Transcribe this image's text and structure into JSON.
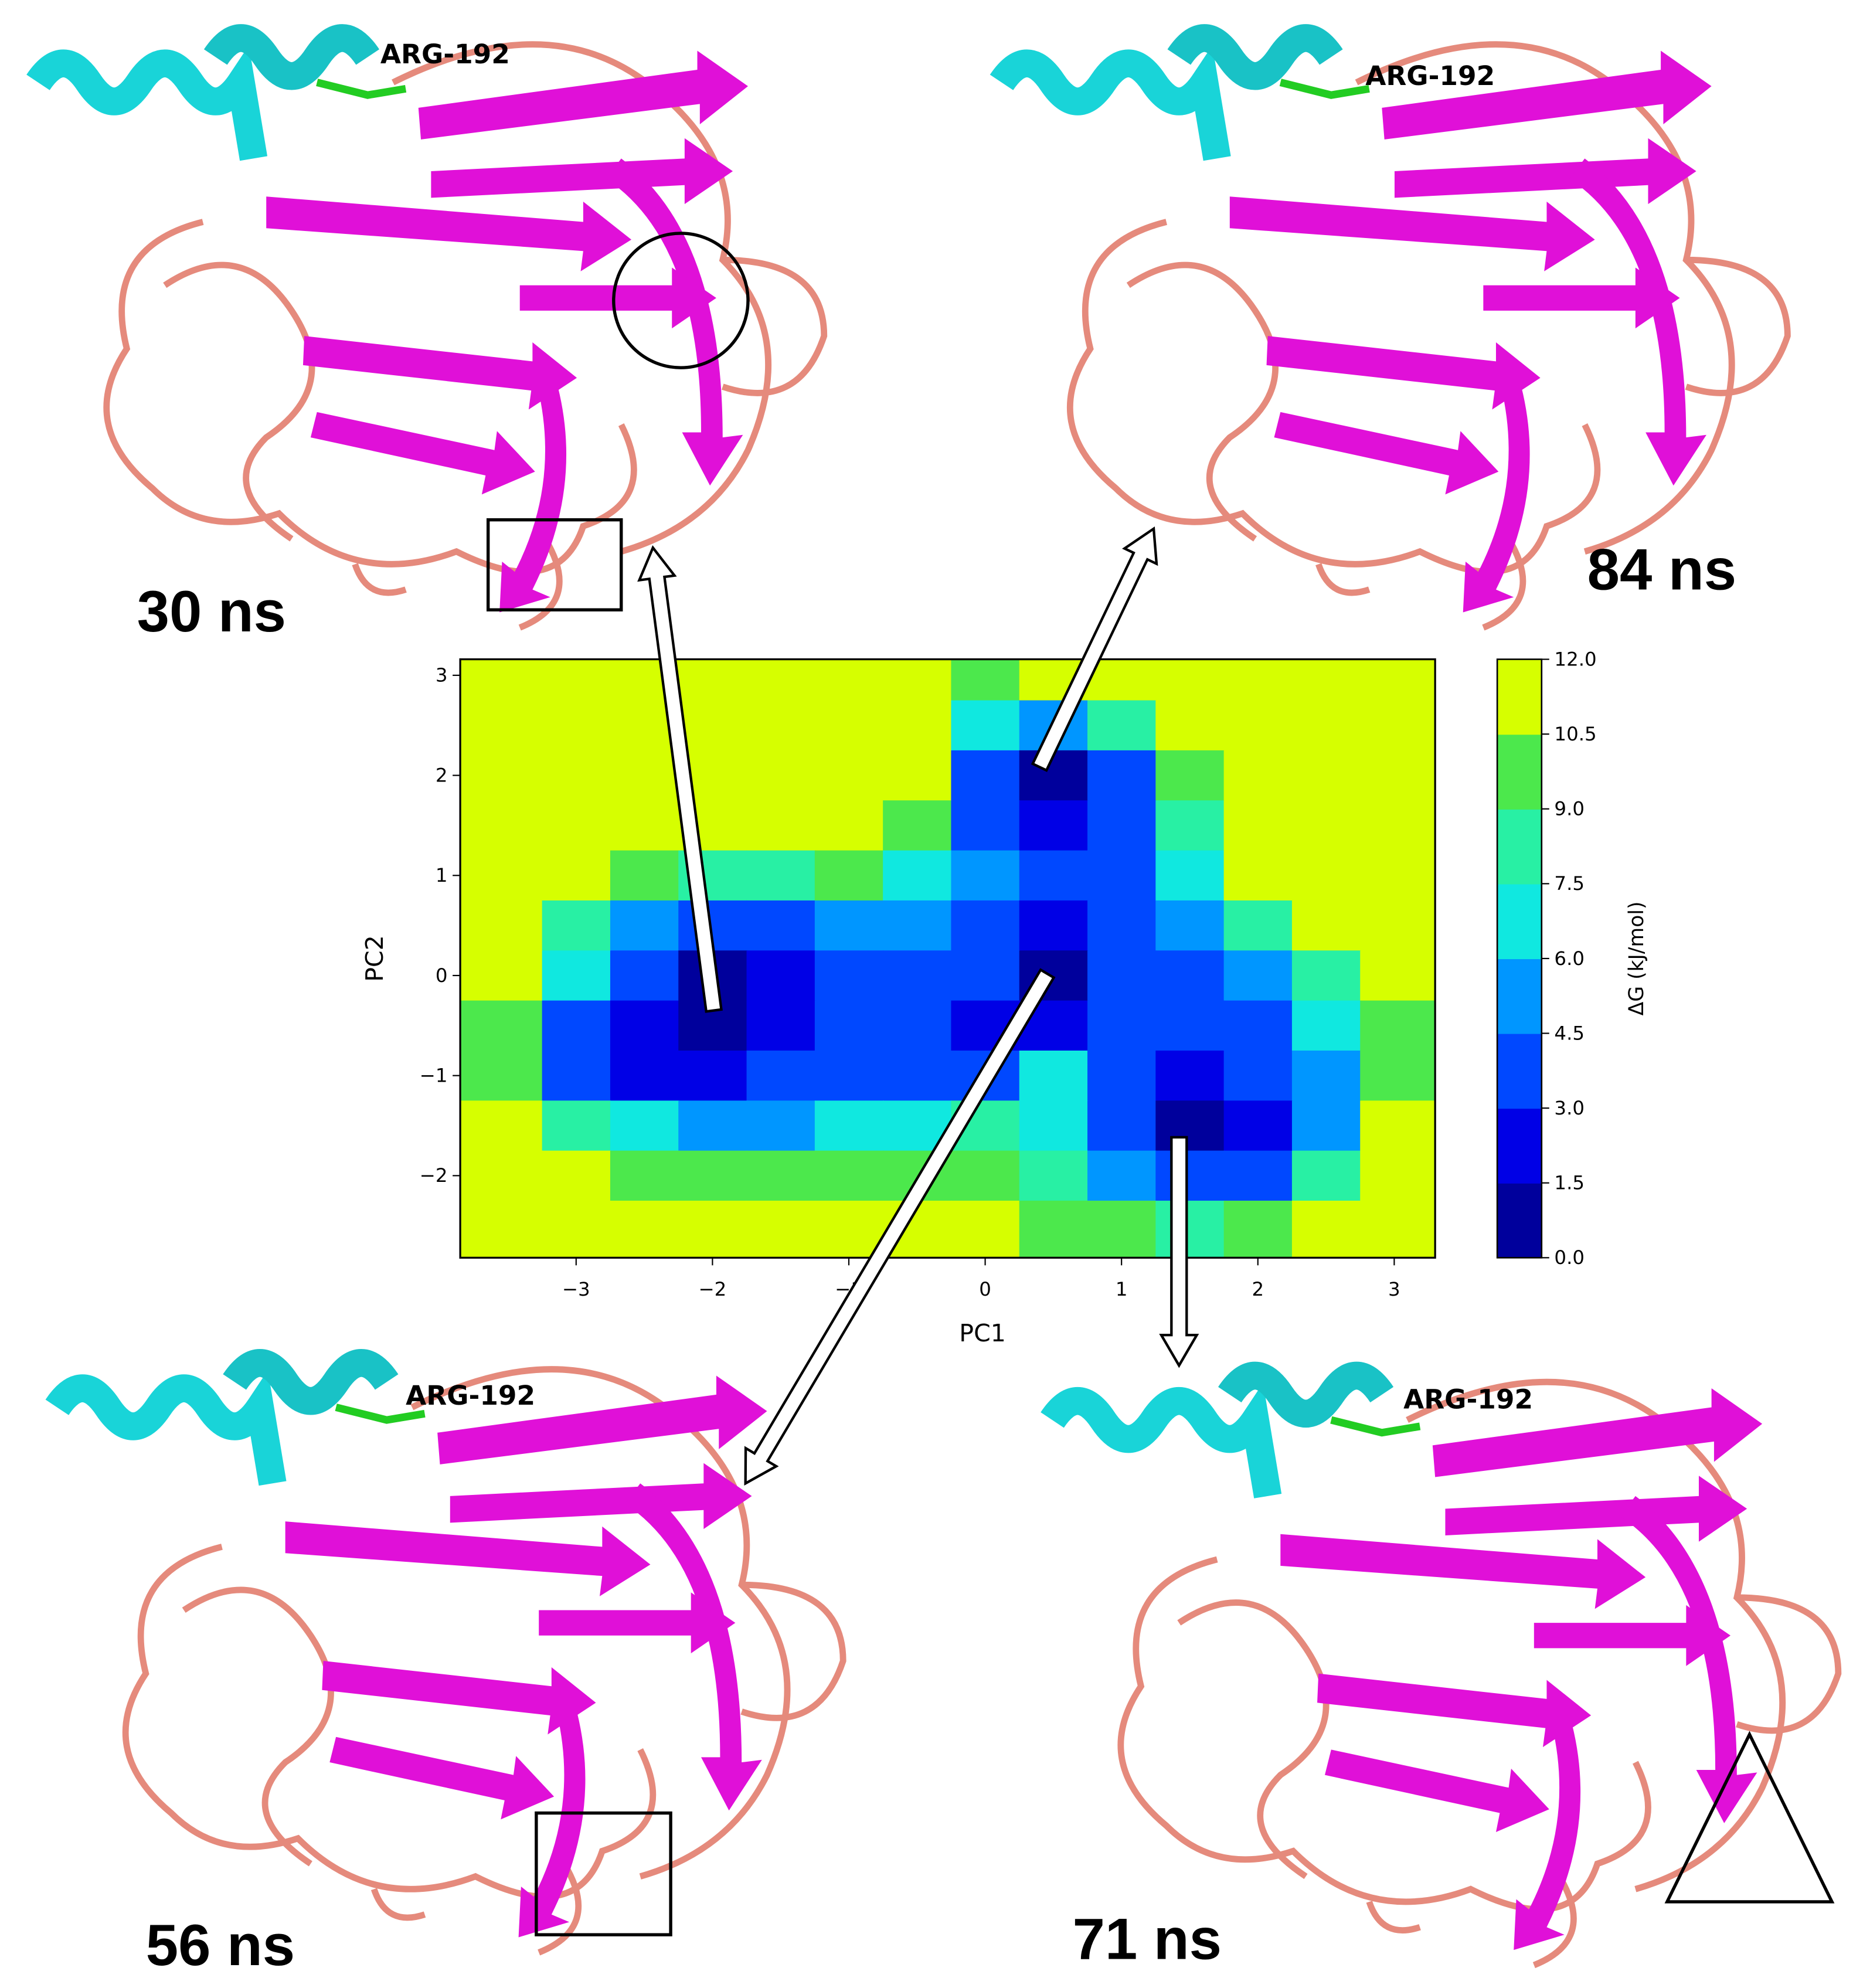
{
  "chart_data": {
    "type": "contour",
    "xlabel": "PC1",
    "ylabel": "PC2",
    "colorbar_label": "ΔG (kJ/mol)",
    "xlim": [
      -3.85,
      3.3
    ],
    "ylim": [
      -2.82,
      3.16
    ],
    "xticks": [
      {
        "value": -3,
        "label": "−3"
      },
      {
        "value": -2,
        "label": "−2"
      },
      {
        "value": -1,
        "label": "−1"
      },
      0,
      1,
      2,
      3
    ],
    "yticks": [
      {
        "value": -2,
        "label": "−2"
      },
      {
        "value": -1,
        "label": "−1"
      },
      0,
      1,
      2,
      3
    ],
    "cticks": [
      {
        "value": 0,
        "label": "0.0"
      },
      {
        "value": 1.5,
        "label": "1.5"
      },
      {
        "value": 3,
        "label": "3.0"
      },
      {
        "value": 4.5,
        "label": "4.5"
      },
      {
        "value": 6,
        "label": "6.0"
      },
      {
        "value": 7.5,
        "label": "7.5"
      },
      {
        "value": 9,
        "label": "9.0"
      },
      {
        "value": 10.5,
        "label": "10.5"
      },
      {
        "value": 12,
        "label": "12.0"
      }
    ],
    "colors": [
      "#00009c",
      "#0000e6",
      "#0048ff",
      "#0096ff",
      "#10e8e0",
      "#28f0a4",
      "#4ce84c",
      "#d6ff00"
    ],
    "x": [
      -3.5,
      -3,
      -2.5,
      -2,
      -1.5,
      -1,
      -0.5,
      0,
      0.5,
      1,
      1.5,
      2,
      2.5,
      3
    ],
    "y": [
      3,
      2.5,
      2,
      1.5,
      1,
      0.5,
      0,
      -0.5,
      -1,
      -1.5,
      -2,
      -2.5
    ],
    "z": [
      [
        12,
        12,
        12,
        12,
        12,
        12,
        12,
        10,
        11,
        12,
        12,
        12,
        12,
        12
      ],
      [
        12,
        12,
        12,
        12,
        12,
        12,
        12,
        6,
        5,
        8,
        12,
        12,
        12,
        12
      ],
      [
        12,
        12,
        12,
        12,
        12,
        12,
        12,
        3,
        0.5,
        3,
        9,
        12,
        12,
        12
      ],
      [
        12,
        12,
        12,
        12,
        12,
        12,
        10,
        4,
        2,
        4,
        8,
        12,
        12,
        12
      ],
      [
        12,
        12,
        9,
        8,
        8,
        9,
        7,
        5,
        3,
        4,
        7,
        11,
        12,
        12
      ],
      [
        12,
        8,
        5,
        4,
        4,
        5,
        5,
        3.5,
        2.5,
        4,
        5,
        8,
        11,
        12
      ],
      [
        11,
        6,
        3,
        1,
        2,
        4,
        4,
        3,
        1,
        3,
        4,
        5,
        8,
        12
      ],
      [
        9,
        4,
        2,
        0.5,
        2,
        4,
        4,
        2,
        2,
        3,
        3,
        4,
        6,
        10
      ],
      [
        10,
        4,
        2,
        2,
        3,
        4,
        4,
        4,
        6,
        4,
        2,
        3,
        5,
        9
      ],
      [
        12,
        8,
        6,
        5,
        5,
        6,
        7,
        8,
        6,
        3,
        0.5,
        2,
        5,
        11
      ],
      [
        12,
        11,
        10,
        9,
        9,
        9,
        10,
        10,
        8,
        5,
        3,
        4,
        8,
        12
      ],
      [
        12,
        12,
        12,
        12,
        12,
        12,
        12,
        11,
        10,
        9,
        8,
        9,
        12,
        12
      ]
    ]
  },
  "snapshots": [
    {
      "label": "30 ns",
      "residue": "ARG-192"
    },
    {
      "label": "84 ns",
      "residue": "ARG-192"
    },
    {
      "label": "56 ns",
      "residue": "ARG-192"
    },
    {
      "label": "71 ns",
      "residue": "ARG-192"
    }
  ]
}
